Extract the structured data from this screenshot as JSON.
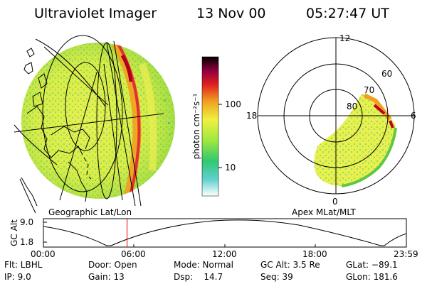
{
  "header": {
    "instrument": "Ultraviolet Imager",
    "date": "13 Nov 00",
    "time": "05:27:47 UT"
  },
  "left_panel": {
    "caption": "Geographic Lat/Lon"
  },
  "right_panel": {
    "caption": "Apex MLat/MLT",
    "mlt_labels": [
      "12",
      "18",
      "6",
      "0"
    ],
    "mlat_labels": [
      "60",
      "70",
      "80"
    ]
  },
  "colorbar": {
    "unit_label": "photon cm⁻²s⁻¹",
    "ticks": [
      "100",
      "10"
    ],
    "scale": "log",
    "colors": [
      "#ffffff",
      "#40d0c8",
      "#30c830",
      "#c8f050",
      "#f0f040",
      "#f0a020",
      "#e02020",
      "#a00030",
      "#400050",
      "#000000"
    ]
  },
  "altitude_plot": {
    "ylabel": "GC Alt",
    "yticks": [
      "9.0",
      "1.8"
    ],
    "xticks": [
      "00:00",
      "06:00",
      "12:00",
      "18:00",
      "23:59"
    ],
    "cursor_time_fraction": 0.2304,
    "cursor_color": "#e00000"
  },
  "info": {
    "flt": "Flt: LBHL",
    "ip": "IP:  9.0",
    "door": "Door: Open",
    "gain": "Gain: 13",
    "mode": "Mode: Normal",
    "dsp": "Dsp:    14.7",
    "gcalt": "GC Alt: 3.5 Re",
    "seq": "Seq: 39",
    "glat": "GLat: −89.1",
    "glon": "GLon: 181.6"
  }
}
